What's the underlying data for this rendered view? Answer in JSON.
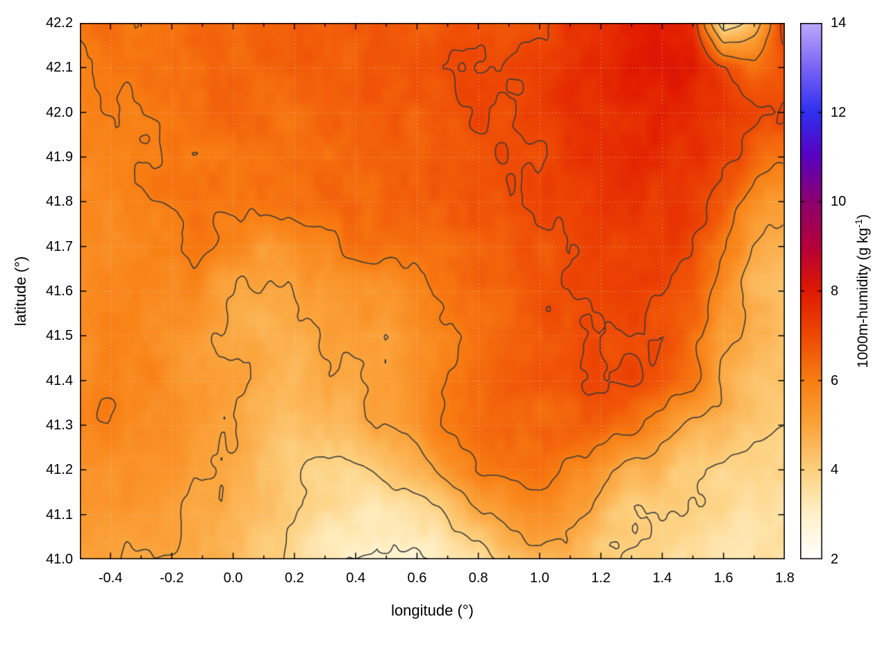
{
  "figure": {
    "background": "#ffffff",
    "x_axis": {
      "label": "longitude (°)",
      "min": -0.5,
      "max": 1.8,
      "ticks": [
        -0.4,
        -0.2,
        0.0,
        0.2,
        0.4,
        0.6,
        0.8,
        1.0,
        1.2,
        1.4,
        1.6,
        1.8
      ],
      "tick_labels": [
        "-0.4",
        "-0.2",
        "0.0",
        "0.2",
        "0.4",
        "0.6",
        "0.8",
        "1.0",
        "1.2",
        "1.4",
        "1.6",
        "1.8"
      ],
      "minor_step": 0.1
    },
    "y_axis": {
      "label": "latitude (°)",
      "min": 41.0,
      "max": 42.2,
      "ticks": [
        41.0,
        41.1,
        41.2,
        41.3,
        41.4,
        41.5,
        41.6,
        41.7,
        41.8,
        41.9,
        42.0,
        42.1,
        42.2
      ],
      "tick_labels": [
        "41.0",
        "41.1",
        "41.2",
        "41.3",
        "41.4",
        "41.5",
        "41.6",
        "41.7",
        "41.8",
        "41.9",
        "42.0",
        "42.1",
        "42.2"
      ]
    },
    "colorbar": {
      "label_prefix": "1000m-humidity (g kg",
      "label_sup": "-1",
      "label_suffix": ")",
      "min": 2,
      "max": 14,
      "ticks": [
        2,
        4,
        6,
        8,
        10,
        12,
        14
      ],
      "tick_labels": [
        "2",
        "4",
        "6",
        "8",
        "10",
        "12",
        "14"
      ]
    }
  },
  "chart_data": {
    "type": "heatmap",
    "title": "",
    "xlabel": "longitude (°)",
    "ylabel": "latitude (°)",
    "zlabel": "1000m-humidity (g kg⁻¹)",
    "xlim": [
      -0.5,
      1.8
    ],
    "ylim": [
      41.0,
      42.2
    ],
    "zlim": [
      2,
      14
    ],
    "grid_on": true,
    "colorbar_position": "right",
    "contour_levels": [
      3,
      4,
      5,
      6,
      7
    ],
    "contour_color": "#3b3b3b",
    "palette_stops": [
      {
        "value": 2,
        "color": "#ffffff"
      },
      {
        "value": 3,
        "color": "#fff2cb"
      },
      {
        "value": 4,
        "color": "#fdd07e"
      },
      {
        "value": 5,
        "color": "#fba43c"
      },
      {
        "value": 6,
        "color": "#f87e13"
      },
      {
        "value": 7,
        "color": "#ee4a04"
      },
      {
        "value": 8,
        "color": "#e01a00"
      },
      {
        "value": 9,
        "color": "#b5003c"
      },
      {
        "value": 10,
        "color": "#8d006e"
      },
      {
        "value": 11,
        "color": "#5a00c0"
      },
      {
        "value": 12,
        "color": "#3030f0"
      },
      {
        "value": 13,
        "color": "#7a64f6"
      },
      {
        "value": 14,
        "color": "#bcaafb"
      }
    ],
    "field": {
      "lon_start": -0.5,
      "lon_step": 0.1,
      "nx": 24,
      "lat_start": 42.2,
      "lat_step": -0.1,
      "ny": 13,
      "row_order": "north-to-south",
      "values_g_per_kg": [
        [
          6.1,
          6.2,
          6.0,
          6.2,
          6.4,
          6.3,
          6.5,
          6.6,
          6.4,
          6.6,
          6.7,
          6.5,
          6.8,
          7.0,
          6.8,
          7.1,
          7.4,
          7.7,
          7.9,
          8.1,
          7.8,
          3.2,
          4.5,
          7.3
        ],
        [
          6.0,
          6.1,
          6.2,
          6.1,
          6.3,
          6.4,
          6.4,
          6.5,
          6.6,
          6.5,
          6.7,
          6.8,
          6.9,
          7.0,
          7.1,
          7.2,
          7.5,
          7.7,
          8.0,
          8.1,
          7.9,
          7.2,
          6.4,
          6.8
        ],
        [
          5.9,
          6.0,
          6.1,
          6.2,
          6.2,
          6.3,
          6.4,
          6.4,
          6.5,
          6.6,
          6.6,
          6.7,
          6.8,
          7.0,
          7.0,
          7.2,
          7.4,
          7.5,
          7.7,
          7.8,
          7.7,
          7.5,
          7.2,
          7.0
        ],
        [
          5.8,
          5.9,
          6.0,
          6.1,
          6.2,
          6.2,
          6.3,
          6.3,
          6.4,
          6.5,
          6.5,
          6.6,
          6.7,
          6.8,
          7.0,
          7.1,
          7.3,
          7.4,
          7.5,
          7.6,
          7.5,
          7.2,
          6.6,
          6.2
        ],
        [
          5.7,
          5.8,
          5.9,
          6.0,
          6.1,
          6.1,
          6.2,
          6.3,
          6.3,
          6.4,
          6.5,
          6.5,
          6.6,
          6.7,
          6.9,
          7.0,
          7.2,
          7.3,
          7.4,
          7.4,
          7.2,
          6.8,
          5.6,
          5.0
        ],
        [
          5.6,
          5.7,
          5.8,
          5.9,
          6.0,
          5.7,
          5.3,
          5.5,
          5.9,
          6.1,
          6.2,
          6.3,
          6.4,
          6.5,
          6.6,
          6.8,
          7.0,
          7.2,
          7.3,
          7.2,
          7.0,
          6.2,
          4.9,
          4.6
        ],
        [
          5.5,
          5.6,
          5.7,
          5.8,
          5.5,
          5.1,
          4.8,
          4.9,
          5.3,
          5.5,
          5.4,
          5.7,
          6.1,
          6.3,
          6.5,
          6.7,
          6.9,
          7.1,
          7.2,
          7.0,
          6.6,
          5.6,
          4.7,
          4.4
        ],
        [
          5.6,
          5.7,
          5.8,
          5.6,
          5.2,
          4.9,
          4.6,
          4.7,
          5.0,
          5.2,
          5.1,
          5.5,
          6.0,
          6.4,
          6.6,
          6.8,
          6.9,
          7.0,
          7.1,
          6.9,
          6.3,
          5.3,
          4.6,
          4.3
        ],
        [
          5.8,
          5.9,
          5.8,
          5.6,
          5.3,
          5.0,
          4.7,
          4.5,
          4.8,
          5.0,
          5.2,
          5.6,
          6.1,
          6.4,
          6.6,
          6.7,
          6.8,
          6.9,
          7.0,
          6.7,
          6.1,
          5.1,
          4.4,
          4.2
        ],
        [
          5.9,
          5.8,
          5.7,
          5.5,
          5.3,
          5.1,
          4.6,
          4.3,
          4.4,
          4.6,
          4.9,
          5.4,
          6.0,
          6.3,
          6.5,
          6.5,
          6.6,
          6.5,
          6.3,
          5.6,
          4.8,
          4.4,
          4.2,
          4.0
        ],
        [
          5.6,
          5.5,
          5.4,
          5.3,
          5.2,
          4.9,
          4.4,
          4.0,
          3.8,
          3.9,
          4.1,
          4.6,
          5.3,
          5.9,
          6.2,
          6.2,
          5.9,
          5.4,
          4.8,
          4.4,
          4.1,
          4.0,
          3.9,
          3.8
        ],
        [
          5.3,
          5.2,
          5.1,
          5.0,
          4.9,
          4.7,
          4.3,
          3.9,
          3.5,
          3.3,
          3.4,
          3.6,
          4.1,
          4.7,
          5.3,
          5.5,
          5.1,
          4.5,
          4.1,
          3.9,
          3.8,
          3.7,
          3.6,
          3.6
        ],
        [
          5.1,
          5.0,
          4.9,
          4.8,
          4.7,
          4.6,
          4.2,
          3.8,
          3.3,
          2.9,
          2.7,
          2.8,
          3.1,
          3.6,
          4.3,
          4.7,
          4.5,
          4.1,
          3.9,
          3.7,
          3.6,
          3.5,
          3.5,
          3.4
        ]
      ]
    }
  }
}
